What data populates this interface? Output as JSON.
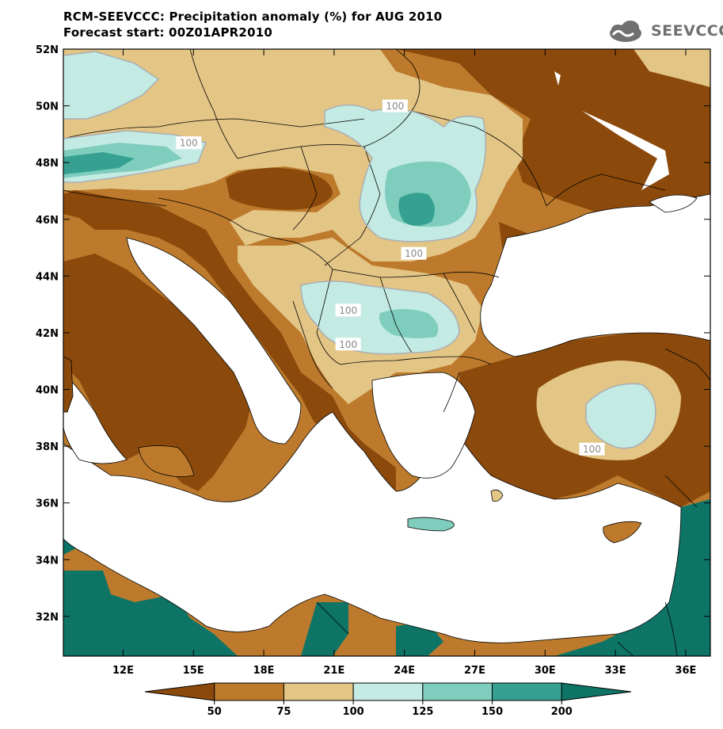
{
  "header": {
    "title_line1": "RCM-SEEVCCC: Precipitation anomaly (%) for AUG 2010",
    "title_line2": "Forecast start: 00Z01APR2010",
    "logo_text": "SEEVCCC"
  },
  "axes": {
    "lat_labels": [
      "52N",
      "50N",
      "48N",
      "46N",
      "44N",
      "42N",
      "40N",
      "38N",
      "36N",
      "34N",
      "32N"
    ],
    "lon_labels": [
      "12E",
      "15E",
      "18E",
      "21E",
      "24E",
      "27E",
      "30E",
      "33E",
      "36E"
    ]
  },
  "contour_labels": [
    {
      "text": "100",
      "lon": 23.6,
      "lat": 50.0
    },
    {
      "text": "100",
      "lon": 14.8,
      "lat": 48.7
    },
    {
      "text": "100",
      "lon": 24.4,
      "lat": 44.8
    },
    {
      "text": "100",
      "lon": 21.6,
      "lat": 42.8
    },
    {
      "text": "100",
      "lon": 21.6,
      "lat": 41.6
    },
    {
      "text": "100",
      "lon": 32.0,
      "lat": 37.9
    }
  ],
  "colorbar": {
    "labels": [
      "50",
      "75",
      "100",
      "125",
      "150",
      "200"
    ],
    "colors": [
      "#8b4a0c",
      "#bd7a2c",
      "#e3c585",
      "#c4ebe3",
      "#7fcdbd",
      "#36a192",
      "#0d7466"
    ]
  },
  "legend": {
    "colors": {
      "lt50": "#8b4a0c",
      "50_75": "#bd7a2c",
      "75_100": "#e3c585",
      "100_125": "#c4ebe3",
      "125_150": "#7fcdbd",
      "150_200": "#36a192",
      "gt200": "#0d7466",
      "sea": "#ffffff",
      "border": "#000000"
    }
  }
}
